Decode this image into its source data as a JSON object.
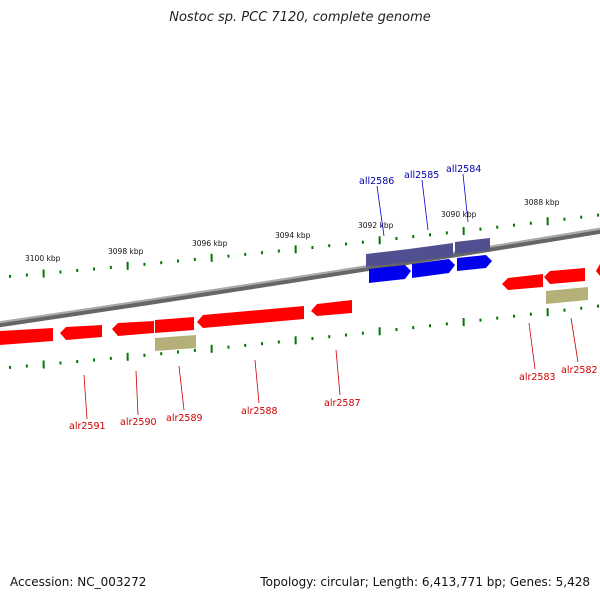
{
  "title": "Nostoc sp. PCC 7120, complete genome",
  "colors": {
    "forward_gene": "#ff0000",
    "reverse_gene": "#0000ee",
    "reverse_feature": "#505090",
    "forward_label": "#cc0000",
    "reverse_label": "#0000aa",
    "misc_feature": "#b5b07a",
    "tick": "#007700",
    "backbone": "#888888"
  },
  "kbp_labels": [
    "3100 kbp",
    "3098 kbp",
    "3096 kbp",
    "3094 kbp",
    "3092 kbp",
    "3090 kbp",
    "3088 kbp"
  ],
  "genes_top": [
    "all2586",
    "all2585",
    "all2584"
  ],
  "genes_bottom": [
    "alr2591",
    "alr2590",
    "alr2589",
    "alr2588",
    "alr2587",
    "alr2583",
    "alr2582"
  ],
  "footer": {
    "accession": "Accession: NC_003272",
    "summary": "Topology: circular; Length: 6,413,771 bp; Genes: 5,428"
  }
}
